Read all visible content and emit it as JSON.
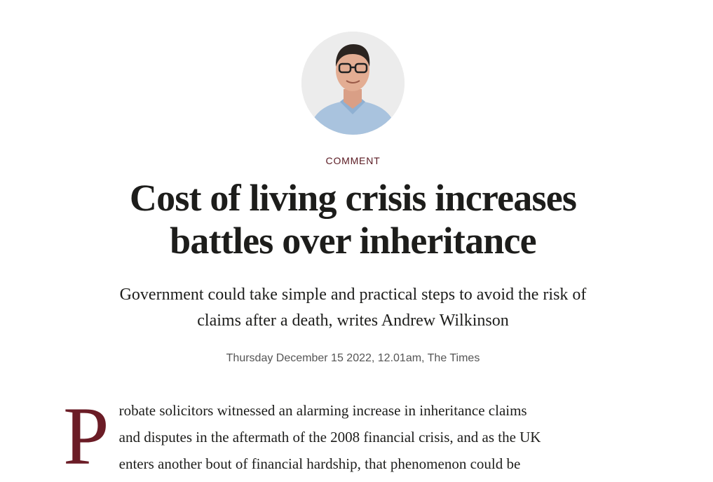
{
  "author": {
    "photo_icon": "author-portrait"
  },
  "article": {
    "section": "COMMENT",
    "headline_line1": "Cost of living crisis increases",
    "headline_line2": "battles over inheritance",
    "standfirst_line1": "Government could take simple and practical steps to avoid the risk of",
    "standfirst_line2": "claims after a death, writes Andrew Wilkinson",
    "dateline": "Thursday December 15 2022, 12.01am, The Times",
    "dropcap": "P",
    "body_line1": "robate solicitors witnessed an alarming increase in inheritance claims",
    "body_line2": "and disputes in the aftermath of the 2008 financial crisis, and as the UK",
    "body_line3": "enters another bout of financial hardship, that phenomenon could be"
  },
  "colors": {
    "accent": "#6b1c26",
    "text": "#1d1d1b",
    "muted": "#555555"
  }
}
